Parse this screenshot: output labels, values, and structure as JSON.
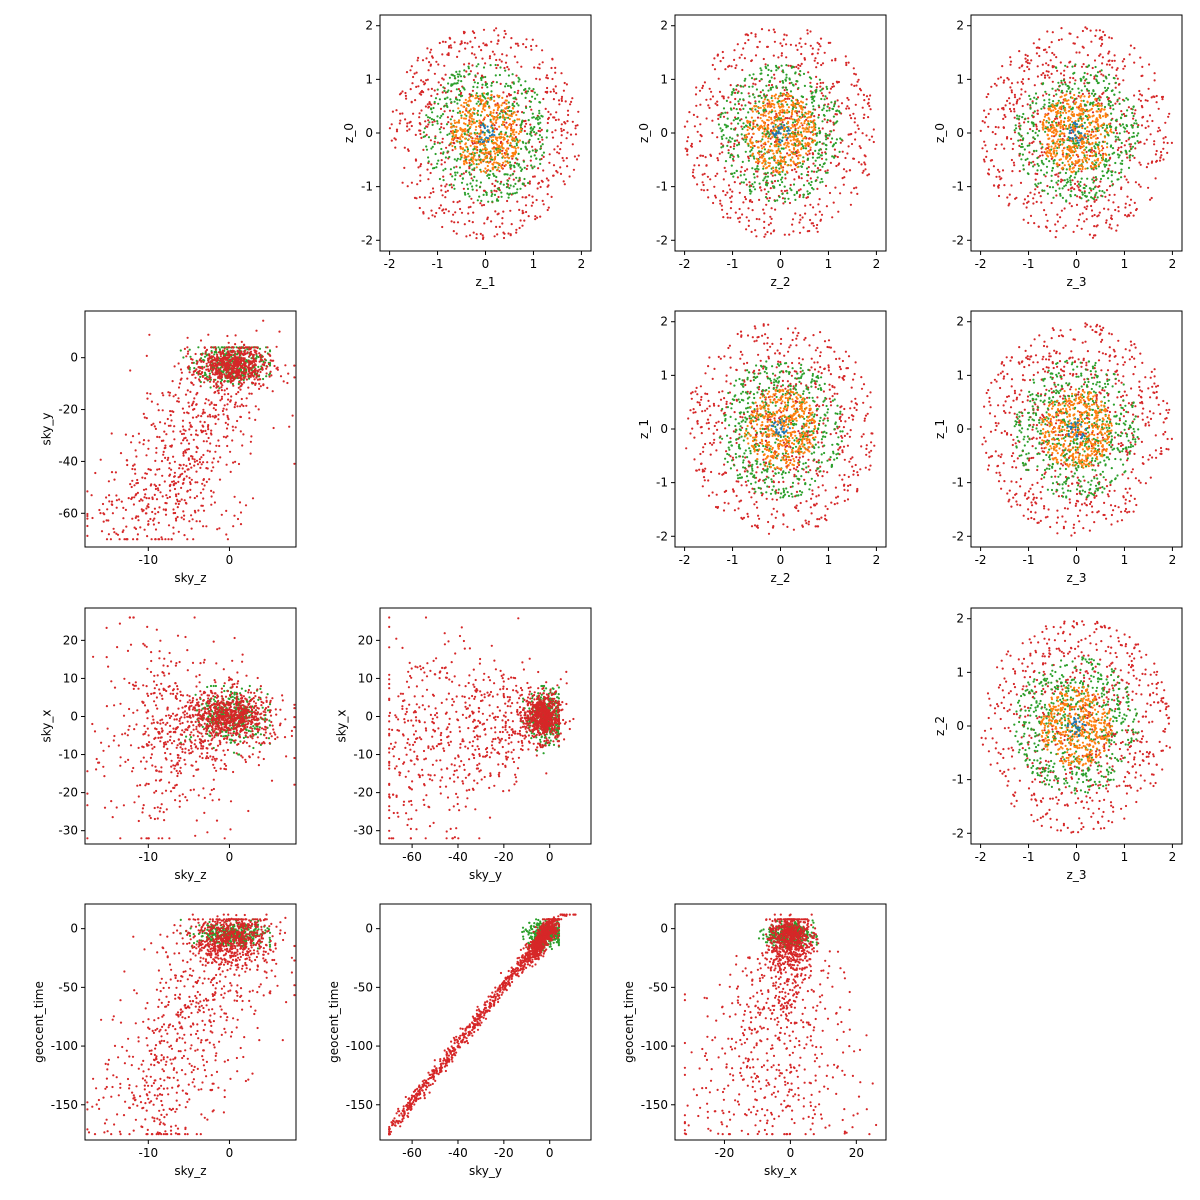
{
  "colors": {
    "outer": "#d62728",
    "middle": "#2ca02c",
    "inner": "#ff7f0e",
    "center": "#1f77b4"
  },
  "chart_data": [
    {
      "id": "z1_z0",
      "type": "scatter",
      "panel": "row1-col2",
      "kind": "ring",
      "xlabel": "z_1",
      "ylabel": "z_0",
      "xlim": [
        -2.2,
        2.2
      ],
      "ylim": [
        -2.2,
        2.2
      ],
      "xticks": [
        "-2",
        "-1",
        "0",
        "1",
        "2"
      ],
      "yticks": [
        "-2",
        "-1",
        "0",
        "1",
        "2"
      ],
      "series": [
        {
          "color": "outer",
          "count": 700,
          "rmin": 0,
          "rmax": 2.0
        },
        {
          "color": "middle",
          "count": 550,
          "rmin": 0,
          "rmax": 1.3
        },
        {
          "color": "inner",
          "count": 420,
          "rmin": 0,
          "rmax": 0.75
        },
        {
          "color": "center",
          "count": 25,
          "rmin": 0,
          "rmax": 0.2
        }
      ]
    },
    {
      "id": "z2_z0",
      "type": "scatter",
      "panel": "row1-col3",
      "kind": "ring",
      "xlabel": "z_2",
      "ylabel": "z_0",
      "xlim": [
        -2.2,
        2.2
      ],
      "ylim": [
        -2.2,
        2.2
      ],
      "xticks": [
        "-2",
        "-1",
        "0",
        "1",
        "2"
      ],
      "yticks": [
        "-2",
        "-1",
        "0",
        "1",
        "2"
      ],
      "series": [
        {
          "color": "outer",
          "count": 700,
          "rmin": 0,
          "rmax": 2.0
        },
        {
          "color": "middle",
          "count": 550,
          "rmin": 0,
          "rmax": 1.3
        },
        {
          "color": "inner",
          "count": 420,
          "rmin": 0,
          "rmax": 0.75
        },
        {
          "color": "center",
          "count": 25,
          "rmin": 0,
          "rmax": 0.2
        }
      ]
    },
    {
      "id": "z3_z0",
      "type": "scatter",
      "panel": "row1-col4",
      "kind": "ring",
      "xlabel": "z_3",
      "ylabel": "z_0",
      "xlim": [
        -2.2,
        2.2
      ],
      "ylim": [
        -2.2,
        2.2
      ],
      "xticks": [
        "-2",
        "-1",
        "0",
        "1",
        "2"
      ],
      "yticks": [
        "-2",
        "-1",
        "0",
        "1",
        "2"
      ],
      "series": [
        {
          "color": "outer",
          "count": 700,
          "rmin": 0,
          "rmax": 2.0
        },
        {
          "color": "middle",
          "count": 550,
          "rmin": 0,
          "rmax": 1.3
        },
        {
          "color": "inner",
          "count": 420,
          "rmin": 0,
          "rmax": 0.75
        },
        {
          "color": "center",
          "count": 25,
          "rmin": 0,
          "rmax": 0.2
        }
      ]
    },
    {
      "id": "skyz_skyy",
      "type": "scatter",
      "panel": "row2-col1",
      "kind": "skyz_skyy",
      "xlabel": "sky_z",
      "ylabel": "sky_y",
      "xlim": [
        -17.8,
        8.2
      ],
      "ylim": [
        -73,
        18
      ],
      "xticks": [
        "-10",
        "0"
      ],
      "yticks": [
        "-60",
        "-40",
        "-20",
        "0"
      ]
    },
    {
      "id": "z2_z1",
      "type": "scatter",
      "panel": "row2-col3",
      "kind": "ring",
      "xlabel": "z_2",
      "ylabel": "z_1",
      "xlim": [
        -2.2,
        2.2
      ],
      "ylim": [
        -2.2,
        2.2
      ],
      "xticks": [
        "-2",
        "-1",
        "0",
        "1",
        "2"
      ],
      "yticks": [
        "-2",
        "-1",
        "0",
        "1",
        "2"
      ],
      "series": [
        {
          "color": "outer",
          "count": 700,
          "rmin": 0,
          "rmax": 2.0
        },
        {
          "color": "middle",
          "count": 550,
          "rmin": 0,
          "rmax": 1.3
        },
        {
          "color": "inner",
          "count": 420,
          "rmin": 0,
          "rmax": 0.75
        },
        {
          "color": "center",
          "count": 25,
          "rmin": 0,
          "rmax": 0.2
        }
      ]
    },
    {
      "id": "z3_z1",
      "type": "scatter",
      "panel": "row2-col4",
      "kind": "ring",
      "xlabel": "z_3",
      "ylabel": "z_1",
      "xlim": [
        -2.2,
        2.2
      ],
      "ylim": [
        -2.2,
        2.2
      ],
      "xticks": [
        "-2",
        "-1",
        "0",
        "1",
        "2"
      ],
      "yticks": [
        "-2",
        "-1",
        "0",
        "1",
        "2"
      ],
      "series": [
        {
          "color": "outer",
          "count": 700,
          "rmin": 0,
          "rmax": 2.0
        },
        {
          "color": "middle",
          "count": 550,
          "rmin": 0,
          "rmax": 1.3
        },
        {
          "color": "inner",
          "count": 420,
          "rmin": 0,
          "rmax": 0.75
        },
        {
          "color": "center",
          "count": 25,
          "rmin": 0,
          "rmax": 0.2
        }
      ]
    },
    {
      "id": "skyz_skyx",
      "type": "scatter",
      "panel": "row3-col1",
      "kind": "skyz_skyx",
      "xlabel": "sky_z",
      "ylabel": "sky_x",
      "xlim": [
        -17.8,
        8.2
      ],
      "ylim": [
        -33.5,
        28.5
      ],
      "xticks": [
        "-10",
        "0"
      ],
      "yticks": [
        "-30",
        "-20",
        "-10",
        "0",
        "10",
        "20"
      ]
    },
    {
      "id": "skyy_skyx",
      "type": "scatter",
      "panel": "row3-col2",
      "kind": "skyy_skyx",
      "xlabel": "sky_y",
      "ylabel": "sky_x",
      "xlim": [
        -74,
        18
      ],
      "ylim": [
        -33.5,
        28.5
      ],
      "xticks": [
        "-60",
        "-40",
        "-20",
        "0"
      ],
      "yticks": [
        "-30",
        "-20",
        "-10",
        "0",
        "10",
        "20"
      ]
    },
    {
      "id": "z3_z2",
      "type": "scatter",
      "panel": "row3-col4",
      "kind": "ring",
      "xlabel": "z_3",
      "ylabel": "z_2",
      "xlim": [
        -2.2,
        2.2
      ],
      "ylim": [
        -2.2,
        2.2
      ],
      "xticks": [
        "-2",
        "-1",
        "0",
        "1",
        "2"
      ],
      "yticks": [
        "-2",
        "-1",
        "0",
        "1",
        "2"
      ],
      "series": [
        {
          "color": "outer",
          "count": 700,
          "rmin": 0,
          "rmax": 2.0
        },
        {
          "color": "middle",
          "count": 550,
          "rmin": 0,
          "rmax": 1.3
        },
        {
          "color": "inner",
          "count": 420,
          "rmin": 0,
          "rmax": 0.75
        },
        {
          "color": "center",
          "count": 25,
          "rmin": 0,
          "rmax": 0.2
        }
      ]
    },
    {
      "id": "skyz_geo",
      "type": "scatter",
      "panel": "row4-col1",
      "kind": "skyz_geo",
      "xlabel": "sky_z",
      "ylabel": "geocent_time",
      "xlim": [
        -17.8,
        8.2
      ],
      "ylim": [
        -180,
        21
      ],
      "xticks": [
        "-10",
        "0"
      ],
      "yticks": [
        "-150",
        "-100",
        "-50",
        "0"
      ]
    },
    {
      "id": "skyy_geo",
      "type": "scatter",
      "panel": "row4-col2",
      "kind": "skyy_geo",
      "xlabel": "sky_y",
      "ylabel": "geocent_time",
      "xlim": [
        -74,
        18
      ],
      "ylim": [
        -180,
        21
      ],
      "xticks": [
        "-60",
        "-40",
        "-20",
        "0"
      ],
      "yticks": [
        "-150",
        "-100",
        "-50",
        "0"
      ]
    },
    {
      "id": "skyx_geo",
      "type": "scatter",
      "panel": "row4-col3",
      "kind": "skyx_geo",
      "xlabel": "sky_x",
      "ylabel": "geocent_time",
      "xlim": [
        -35,
        29
      ],
      "ylim": [
        -180,
        21
      ],
      "xticks": [
        "-20",
        "0",
        "20"
      ],
      "yticks": [
        "-150",
        "-100",
        "-50",
        "0"
      ]
    }
  ]
}
